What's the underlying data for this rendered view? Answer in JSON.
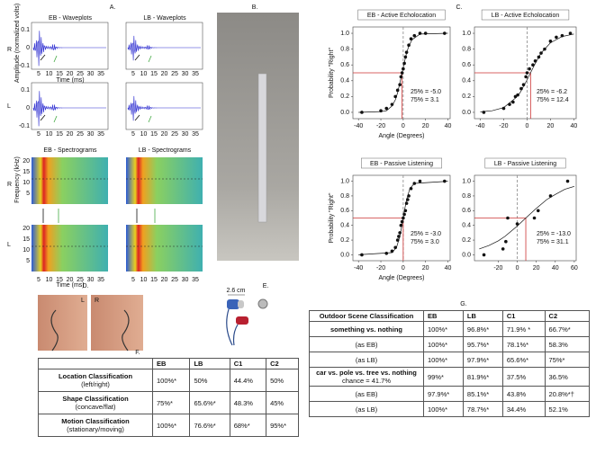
{
  "panel_labels": [
    "A.",
    "B.",
    "C.",
    "D.",
    "E.",
    "F.",
    "G."
  ],
  "panel_a": {
    "eb_wave_title": "EB - Waveplots",
    "lb_wave_title": "LB - Waveplots",
    "eb_spec_title": "EB - Spectrograms",
    "lb_spec_title": "LB - Spectrograms",
    "right": "R",
    "left": "L",
    "amplitude_label": "Amplitude (normalized volts)",
    "frequency_label": "Frequency (kHz)",
    "time_label": "Time (ms)",
    "time_ticks": [
      "5",
      "10",
      "15",
      "20",
      "25",
      "30",
      "35"
    ],
    "amplitude_ticks": [
      "0.1",
      "0",
      "-0.1"
    ],
    "frequency_ticks": [
      "20",
      "15",
      "10",
      "5"
    ]
  },
  "panel_d": {
    "left": "L",
    "right": "R"
  },
  "panel_e": {
    "scale": "2.6 cm"
  },
  "chart_data": [
    {
      "type": "scatter",
      "title": "EB - Active Echolocation",
      "x_label": "Angle (Degrees)",
      "y_label": "Probability \"Right\"",
      "xlim": [
        -45,
        42
      ],
      "ylim": [
        -0.08,
        1.08
      ],
      "xticks": [
        -40,
        -20,
        0,
        20,
        40
      ],
      "yticks": [
        {
          "value": 0,
          "label": "0.0"
        },
        {
          "value": 0.2,
          "label": "0.2"
        },
        {
          "value": 0.4,
          "label": "0.4"
        },
        {
          "value": 0.6,
          "label": "0.6"
        },
        {
          "value": 0.8,
          "label": "0.8"
        },
        {
          "value": 1,
          "label": "1.0"
        }
      ],
      "x": [
        -37,
        -20,
        -15,
        -10,
        -7,
        -5,
        -3,
        -2,
        -1,
        0,
        1,
        2,
        3,
        5,
        7,
        10,
        15,
        20,
        37
      ],
      "y": [
        0,
        0.02,
        0.05,
        0.1,
        0.2,
        0.28,
        0.35,
        0.45,
        0.5,
        0.55,
        0.62,
        0.7,
        0.76,
        0.85,
        0.93,
        0.97,
        1,
        1,
        1
      ],
      "fit_x": [
        -40,
        -20,
        -15,
        -10,
        -7,
        -5,
        -3,
        -1,
        1,
        3,
        5,
        8,
        15,
        40
      ],
      "fit_y": [
        0,
        0.01,
        0.02,
        0.08,
        0.16,
        0.25,
        0.37,
        0.5,
        0.63,
        0.75,
        0.84,
        0.92,
        0.99,
        1
      ],
      "reference_line": 0,
      "threshold": -1,
      "threshold_y": 0.5,
      "annotations": [
        "25% = -5.0",
        "75% = 3.1"
      ],
      "color": "#111",
      "threshold_color": "#cc3333"
    },
    {
      "type": "scatter",
      "title": "LB - Active Echolocation",
      "xlim": [
        -45,
        42
      ],
      "ylim": [
        -0.08,
        1.08
      ],
      "xticks": [
        -40,
        -20,
        0,
        20,
        40
      ],
      "yticks": [
        {
          "value": 0,
          "label": "0.0"
        },
        {
          "value": 0.2,
          "label": "0.2"
        },
        {
          "value": 0.4,
          "label": "0.4"
        },
        {
          "value": 0.6,
          "label": "0.6"
        },
        {
          "value": 0.8,
          "label": "0.8"
        },
        {
          "value": 1,
          "label": "1.0"
        }
      ],
      "x": [
        -37,
        -20,
        -15,
        -12,
        -10,
        -8,
        -5,
        -3,
        -1,
        0,
        2,
        5,
        7,
        10,
        12,
        15,
        20,
        25,
        30,
        37
      ],
      "y": [
        0,
        0.05,
        0.1,
        0.13,
        0.2,
        0.22,
        0.3,
        0.35,
        0.45,
        0.5,
        0.55,
        0.6,
        0.65,
        0.7,
        0.75,
        0.8,
        0.9,
        0.95,
        0.97,
        1
      ],
      "fit_x": [
        -40,
        -30,
        -20,
        -10,
        -6,
        0,
        3,
        6,
        12,
        20,
        30,
        40
      ],
      "fit_y": [
        0.006,
        0.02,
        0.06,
        0.18,
        0.25,
        0.41,
        0.5,
        0.59,
        0.75,
        0.88,
        0.96,
        0.99
      ],
      "reference_line": 0,
      "threshold": 3,
      "threshold_y": 0.5,
      "annotations": [
        "25% = -6.2",
        "75% = 12.4"
      ],
      "color": "#111",
      "threshold_color": "#cc3333"
    },
    {
      "type": "scatter",
      "title": "EB - Passive Listening",
      "x_label": "Angle (Degrees)",
      "y_label": "Probability \"Right\"",
      "xlim": [
        -45,
        42
      ],
      "ylim": [
        -0.08,
        1.08
      ],
      "xticks": [
        -40,
        -20,
        0,
        20,
        40
      ],
      "yticks": [
        {
          "value": 0,
          "label": "0.0"
        },
        {
          "value": 0.2,
          "label": "0.2"
        },
        {
          "value": 0.4,
          "label": "0.4"
        },
        {
          "value": 0.6,
          "label": "0.6"
        },
        {
          "value": 0.8,
          "label": "0.8"
        },
        {
          "value": 1,
          "label": "1.0"
        }
      ],
      "x": [
        -37,
        -15,
        -10,
        -7,
        -5,
        -4,
        -3,
        -2,
        -1,
        0,
        1,
        2,
        3,
        4,
        5,
        7,
        10,
        15,
        37
      ],
      "y": [
        0,
        0.02,
        0.05,
        0.1,
        0.2,
        0.25,
        0.3,
        0.4,
        0.45,
        0.5,
        0.55,
        0.6,
        0.7,
        0.75,
        0.8,
        0.9,
        0.97,
        1,
        1
      ],
      "fit_x": [
        -40,
        -10,
        -6,
        -3,
        -1,
        0,
        1,
        3,
        6,
        10,
        40
      ],
      "fit_y": [
        0,
        0.03,
        0.1,
        0.25,
        0.41,
        0.5,
        0.59,
        0.75,
        0.9,
        0.97,
        1
      ],
      "reference_line": 0,
      "threshold": 0,
      "threshold_y": 0.5,
      "annotations": [
        "25% = -3.0",
        "75% = 3.0"
      ],
      "color": "#111",
      "threshold_color": "#cc3333"
    },
    {
      "type": "scatter",
      "title": "LB - Passive Listening",
      "xlim": [
        -45,
        62
      ],
      "ylim": [
        -0.08,
        1.08
      ],
      "xticks": [
        -20,
        0,
        20,
        40,
        60
      ],
      "yticks": [
        {
          "value": 0,
          "label": "0.0"
        },
        {
          "value": 0.2,
          "label": "0.2"
        },
        {
          "value": 0.4,
          "label": "0.4"
        },
        {
          "value": 0.6,
          "label": "0.6"
        },
        {
          "value": 0.8,
          "label": "0.8"
        },
        {
          "value": 1,
          "label": "1.0"
        }
      ],
      "x": [
        -35,
        -15,
        -12,
        -10,
        0,
        18,
        22,
        35,
        53
      ],
      "y": [
        0,
        0.08,
        0.18,
        0.5,
        0.42,
        0.5,
        0.6,
        0.8,
        1
      ],
      "fit_x": [
        -40,
        -30,
        -20,
        -13,
        0,
        9,
        20,
        31,
        40,
        50,
        60
      ],
      "fit_y": [
        0.08,
        0.125,
        0.19,
        0.25,
        0.39,
        0.5,
        0.63,
        0.75,
        0.82,
        0.89,
        0.93
      ],
      "reference_line": 0,
      "threshold": 9,
      "threshold_y": 0.5,
      "annotations": [
        "25% = -13.0",
        "75% = 31.1"
      ],
      "color": "#111",
      "threshold_color": "#cc3333"
    }
  ],
  "table_f": {
    "columns": [
      "EB",
      "LB",
      "C1",
      "C2"
    ],
    "rows": [
      {
        "label": "Location Classification",
        "sub": "(left/right)",
        "cells": [
          "100%*",
          "50%",
          "44.4%",
          "50%"
        ]
      },
      {
        "label": "Shape Classification",
        "sub": "(concave/flat)",
        "cells": [
          "75%*",
          "65.6%*",
          "48.3%",
          "45%"
        ]
      },
      {
        "label": "Motion Classification",
        "sub": "(stationary/moving)",
        "cells": [
          "100%*",
          "76.6%*",
          "68%*",
          "95%*"
        ]
      }
    ]
  },
  "table_g": {
    "header": "Outdoor Scene Classification",
    "columns": [
      "EB",
      "LB",
      "C1",
      "C2"
    ],
    "rows": [
      {
        "label": "something vs. nothing",
        "cells": [
          "100%*",
          "96.8%*",
          "71.9% *",
          "66.7%*"
        ]
      },
      {
        "label": "(as EB)",
        "cells": [
          "100%*",
          "95.7%*",
          "78.1%*",
          "58.3%"
        ]
      },
      {
        "label": "(as LB)",
        "cells": [
          "100%*",
          "97.9%*",
          "65.6%*",
          "75%*"
        ]
      },
      {
        "label": "car vs. pole vs. tree vs. nothing",
        "sub": "chance = 41.7%",
        "cells": [
          "99%*",
          "81.9%*",
          "37.5%",
          "36.5%"
        ]
      },
      {
        "label": "(as EB)",
        "cells": [
          "97.9%*",
          "85.1%*",
          "43.8%",
          "20.8%*†"
        ]
      },
      {
        "label": "(as LB)",
        "cells": [
          "100%*",
          "78.7%*",
          "34.4%",
          "52.1%"
        ]
      }
    ]
  }
}
